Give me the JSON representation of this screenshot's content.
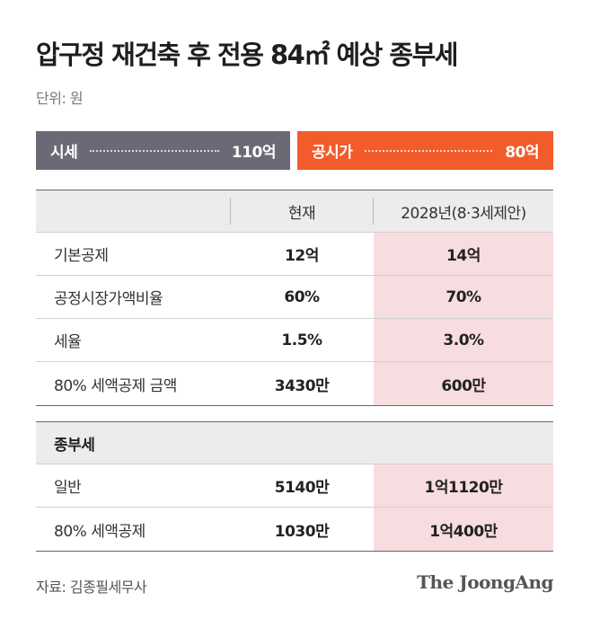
{
  "title": "압구정 재건축 후 전용 84㎡ 예상 종부세",
  "unit": "단위: 원",
  "summary": {
    "market_label": "시세",
    "market_value": "110억",
    "official_label": "공시가",
    "official_value": "80억",
    "colors": {
      "market": "#6a6a77",
      "official": "#f25c2b",
      "highlight": "#f8dde0"
    }
  },
  "table": {
    "headers": [
      "",
      "현재",
      "2028년(8·3세제안)"
    ],
    "rows": [
      [
        "기본공제",
        "12억",
        "14억"
      ],
      [
        "공정시장가액비율",
        "60%",
        "70%"
      ],
      [
        "세율",
        "1.5%",
        "3.0%"
      ],
      [
        "80% 세액공제 금액",
        "3430만",
        "600만"
      ]
    ]
  },
  "tax": {
    "section_title": "종부세",
    "rows": [
      [
        "일반",
        "5140만",
        "1억1120만"
      ],
      [
        "80% 세액공제",
        "1030만",
        "1억400만"
      ]
    ]
  },
  "source": "자료: 김종필세무사",
  "logo": "The JoongAng"
}
